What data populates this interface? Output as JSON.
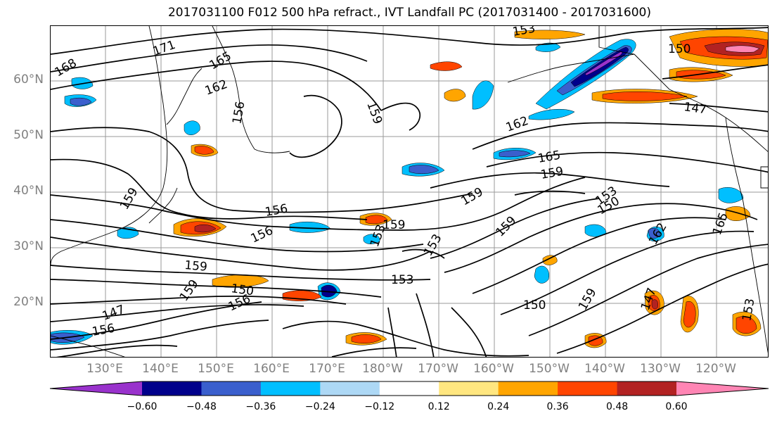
{
  "title": "2017031100 F012 500 hPa refract., IVT Landfall PC (2017031400 - 2017031600)",
  "lat_labels": [
    "60°N",
    "50°N",
    "40°N",
    "30°N",
    "20°N"
  ],
  "lon_labels": [
    "130°E",
    "140°E",
    "150°E",
    "160°E",
    "170°E",
    "180°W",
    "170°W",
    "160°W",
    "150°W",
    "140°W",
    "130°W",
    "120°W"
  ],
  "colorbar": {
    "colors": [
      "#9932cc",
      "#00008b",
      "#3a5fcd",
      "#00bfff",
      "#add8f5",
      "#ffffff",
      "#ffe680",
      "#ffa500",
      "#ff4500",
      "#b22222",
      "#ff85b4"
    ],
    "tick_labels": [
      "−0.60",
      "−0.48",
      "−0.36",
      "−0.24",
      "−0.12",
      "0.12",
      "0.24",
      "0.36",
      "0.48",
      "0.60"
    ]
  },
  "contour_labels": [
    "171",
    "168",
    "165",
    "162",
    "159",
    "156",
    "153",
    "150",
    "147",
    "162",
    "165",
    "159",
    "159",
    "156",
    "156",
    "159",
    "159",
    "153",
    "153",
    "153",
    "159",
    "159",
    "150",
    "150",
    "147",
    "150",
    "153",
    "156",
    "159",
    "147",
    "165",
    "162",
    "159",
    "156",
    "153"
  ]
}
